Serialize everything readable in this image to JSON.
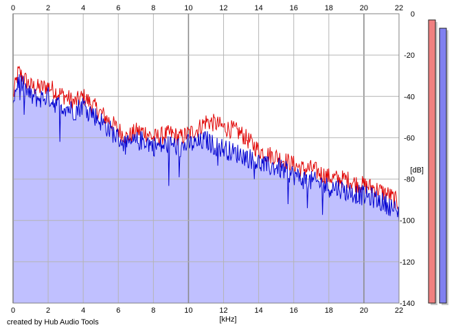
{
  "credit": "created by Hub Audio Tools",
  "colors": {
    "background": "#ffffff",
    "plot_fill": "#c0c0ff",
    "grid": "#b4b4b4",
    "grid_major": "#8a8a8a",
    "left_channel": "#e00000",
    "right_channel": "#0000d0",
    "meter_left": "#f08080",
    "meter_right": "#8080f0"
  },
  "chart_data": {
    "type": "line",
    "title": "",
    "xlabel": "[kHz]",
    "ylabel": "[dB]",
    "xlim": [
      0,
      22
    ],
    "ylim": [
      -140,
      0
    ],
    "x_ticks": [
      "0",
      "2",
      "4",
      "6",
      "8",
      "10",
      "12",
      "14",
      "16",
      "18",
      "20",
      "22"
    ],
    "y_ticks": [
      "0",
      "-20",
      "-40",
      "-60",
      "-80",
      "-100",
      "-120",
      "-140"
    ],
    "grid": true,
    "x": [
      0,
      0.3,
      0.5,
      1,
      1.5,
      2,
      2.5,
      3,
      3.5,
      4,
      4.5,
      5,
      5.5,
      6,
      6.5,
      7,
      7.5,
      8,
      8.5,
      9,
      9.5,
      10,
      10.5,
      11,
      11.5,
      12,
      12.5,
      13,
      13.5,
      14,
      14.5,
      15,
      15.5,
      16,
      16.5,
      17,
      17.5,
      18,
      18.5,
      19,
      19.5,
      20,
      20.5,
      21,
      21.5,
      22
    ],
    "series": [
      {
        "values": [
          -40,
          -28,
          -30,
          -35,
          -36,
          -35,
          -38,
          -40,
          -43,
          -40,
          -44,
          -48,
          -52,
          -56,
          -60,
          -57,
          -57,
          -60,
          -59,
          -58,
          -60,
          -58,
          -56,
          -52,
          -53,
          -55,
          -56,
          -58,
          -62,
          -66,
          -68,
          -69,
          -71,
          -73,
          -75,
          -75,
          -77,
          -79,
          -80,
          -80,
          -82,
          -83,
          -84,
          -86,
          -88,
          -92
        ]
      },
      {
        "values": [
          -42,
          -32,
          -34,
          -40,
          -41,
          -40,
          -44,
          -45,
          -47,
          -44,
          -48,
          -52,
          -56,
          -60,
          -64,
          -62,
          -61,
          -64,
          -64,
          -63,
          -65,
          -63,
          -63,
          -61,
          -64,
          -65,
          -67,
          -68,
          -70,
          -72,
          -74,
          -74,
          -76,
          -78,
          -80,
          -81,
          -82,
          -84,
          -84,
          -86,
          -87,
          -88,
          -89,
          -91,
          -93,
          -97
        ]
      }
    ],
    "meters": [
      {
        "channel": "left",
        "level_db": -3
      },
      {
        "channel": "right",
        "level_db": -7
      }
    ]
  }
}
